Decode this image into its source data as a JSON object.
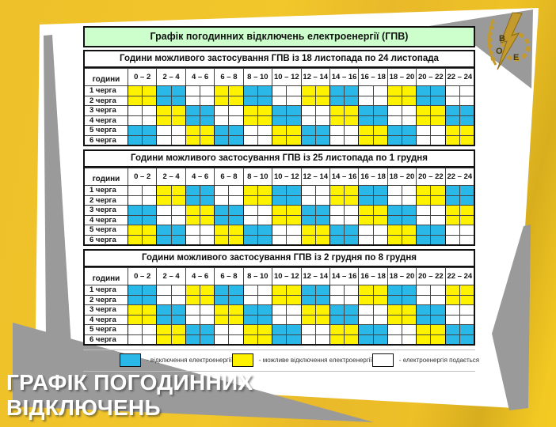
{
  "page": {
    "main_title": "Графік погодинних відключень електроенергії (ГПВ)",
    "corner_label": "години",
    "time_columns": [
      "0 – 2",
      "2 – 4",
      "4 – 6",
      "6 – 8",
      "8 – 10",
      "10 – 12",
      "12 – 14",
      "14 – 16",
      "16 – 18",
      "18 – 20",
      "20 – 22",
      "22 – 24"
    ],
    "row_labels": [
      "1 черга",
      "2 черга",
      "3 черга",
      "4 черга",
      "5 черга",
      "6 черга"
    ]
  },
  "cell_colors": {
    "C": "#29b8e8",
    "Y": "#fff200",
    "W": "#ffffff"
  },
  "tables": [
    {
      "title": "Години можливого застосування ГПВ із 18 листопада по 24 листопада",
      "rows": [
        "YYCCWWYYCCWWYYCCWWYYCCWW",
        "YYCCWWYYCCWWYYCCWWYYCCWW",
        "WWYYCCWWYYCCWWYYCCWWYYCC",
        "WWYYCCWWYYCCWWYYCCWWYYCC",
        "CCWWYYCCWWYYCCWWYYCCWWYY",
        "CCWWYYCCWWYYCCWWYYCCWWYY"
      ]
    },
    {
      "title": "Години можливого застосування ГПВ із 25 листопада по 1 грудня",
      "rows": [
        "WWYYCCWWYYCCWWYYCCWWYYCC",
        "WWYYCCWWYYCCWWYYCCWWYYCC",
        "CCWWYYCCWWYYCCWWYYCCWWYY",
        "CCWWYYCCWWYYCCWWYYCCWWYY",
        "YYCCWWYYCCWWYYCCWWYYCCWW",
        "YYCCWWYYCCWWYYCCWWYYCCWW"
      ]
    },
    {
      "title": "Години можливого застосування ГПВ із 2 грудня по 8 грудня",
      "rows": [
        "CCWWYYCCWWYYCCWWYYCCWWYY",
        "CCWWYYCCWWYYCCWWYYCCWWYY",
        "YYCCWWYYCCWWYYCCWWYYCCWW",
        "YYCCWWYYCCWWYYCCWWYYCCWW",
        "WWYYCCWWYYCCWWYYCCWWYYCC",
        "WWYYCCWWYYCCWWYYCCWWYYCC"
      ]
    }
  ],
  "legend": [
    {
      "code": "C",
      "label": "- відключення електроенергії"
    },
    {
      "code": "Y",
      "label": "- можливе відключення електроенергії"
    },
    {
      "code": "W",
      "label": "- електроенергія подається"
    }
  ],
  "banner": {
    "line1": "ГРАФІК ПОГОДИННИХ",
    "line2": "ВІДКЛЮЧЕНЬ"
  },
  "logo": {
    "letters_1": "В",
    "letters_2": "О",
    "letters_3": "Е"
  }
}
